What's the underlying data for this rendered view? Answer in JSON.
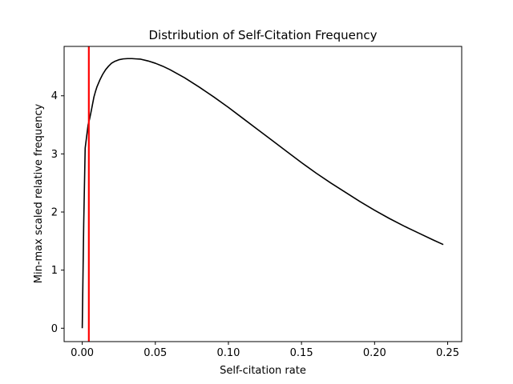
{
  "chart_data": {
    "type": "line",
    "title": "Distribution of Self-Citation Frequency",
    "xlabel": "Self-citation rate",
    "ylabel": "Min-max scaled relative frequency",
    "xlim": [
      -0.0124,
      0.2596
    ],
    "ylim": [
      -0.23,
      4.85
    ],
    "x_ticks": [
      0.0,
      0.05,
      0.1,
      0.15,
      0.2,
      0.25
    ],
    "x_tick_labels": [
      "0.00",
      "0.05",
      "0.10",
      "0.15",
      "0.20",
      "0.25"
    ],
    "y_ticks": [
      0,
      1,
      2,
      3,
      4
    ],
    "y_tick_labels": [
      "0",
      "1",
      "2",
      "3",
      "4"
    ],
    "grid": false,
    "series": [
      {
        "color": "#000000",
        "x": [
          0.0,
          0.001,
          0.002,
          0.003,
          0.004,
          0.005,
          0.006,
          0.007,
          0.008,
          0.009,
          0.01,
          0.012,
          0.014,
          0.016,
          0.018,
          0.02,
          0.022,
          0.025,
          0.028,
          0.031,
          0.034,
          0.037,
          0.04,
          0.045,
          0.05,
          0.055,
          0.06,
          0.07,
          0.08,
          0.09,
          0.1,
          0.11,
          0.12,
          0.13,
          0.14,
          0.15,
          0.16,
          0.17,
          0.18,
          0.19,
          0.2,
          0.21,
          0.22,
          0.23,
          0.24,
          0.247
        ],
        "y": [
          0.0,
          1.8,
          3.1,
          3.3,
          3.5,
          3.6,
          3.72,
          3.85,
          3.98,
          4.07,
          4.15,
          4.27,
          4.37,
          4.45,
          4.51,
          4.56,
          4.59,
          4.62,
          4.635,
          4.64,
          4.64,
          4.635,
          4.63,
          4.6,
          4.56,
          4.51,
          4.45,
          4.31,
          4.15,
          3.98,
          3.8,
          3.61,
          3.42,
          3.23,
          3.04,
          2.85,
          2.67,
          2.5,
          2.34,
          2.18,
          2.03,
          1.89,
          1.76,
          1.64,
          1.52,
          1.44
        ]
      }
    ],
    "vlines": [
      {
        "x": 0.0045,
        "color": "#ff0000"
      }
    ]
  }
}
